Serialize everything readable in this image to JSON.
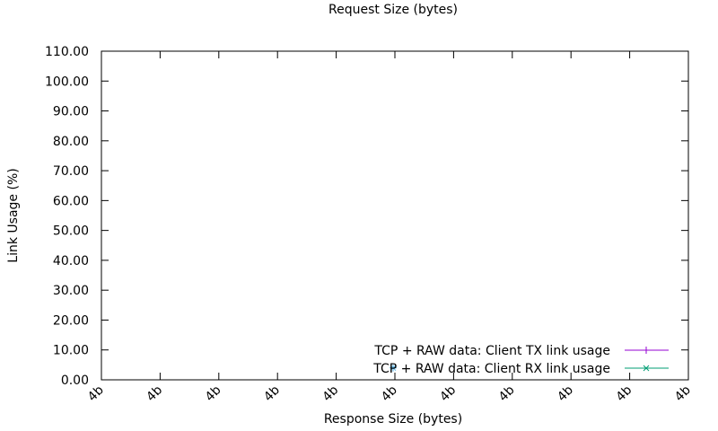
{
  "chart_data": {
    "type": "scatter",
    "title": "Request Size (bytes)",
    "xlabel": "Response Size (bytes)",
    "ylabel": "Link Usage (%)",
    "ylim": [
      0,
      110
    ],
    "y_ticks": [
      "0.00",
      "10.00",
      "20.00",
      "30.00",
      "40.00",
      "50.00",
      "60.00",
      "70.00",
      "80.00",
      "90.00",
      "100.00",
      "110.00"
    ],
    "x_ticks": [
      "4b",
      "4b",
      "4b",
      "4b",
      "4b",
      "4b",
      "4b",
      "4b",
      "4b",
      "4b",
      "4b"
    ],
    "grid": false,
    "legend_position": "bottom-right",
    "series": [
      {
        "name": "TCP + RAW data: Client TX link usage",
        "color": "#9400d3",
        "marker": "plus",
        "points": [
          {
            "x": "4b",
            "y": 0
          }
        ]
      },
      {
        "name": "TCP + RAW data: Client RX link usage",
        "color": "#009e73",
        "marker": "cross",
        "points": [
          {
            "x": "4b",
            "y": 0
          }
        ]
      }
    ],
    "extra_marks": [
      {
        "marker": "star",
        "color": "#56b4e9",
        "x_index": 5,
        "y": 4
      }
    ]
  }
}
